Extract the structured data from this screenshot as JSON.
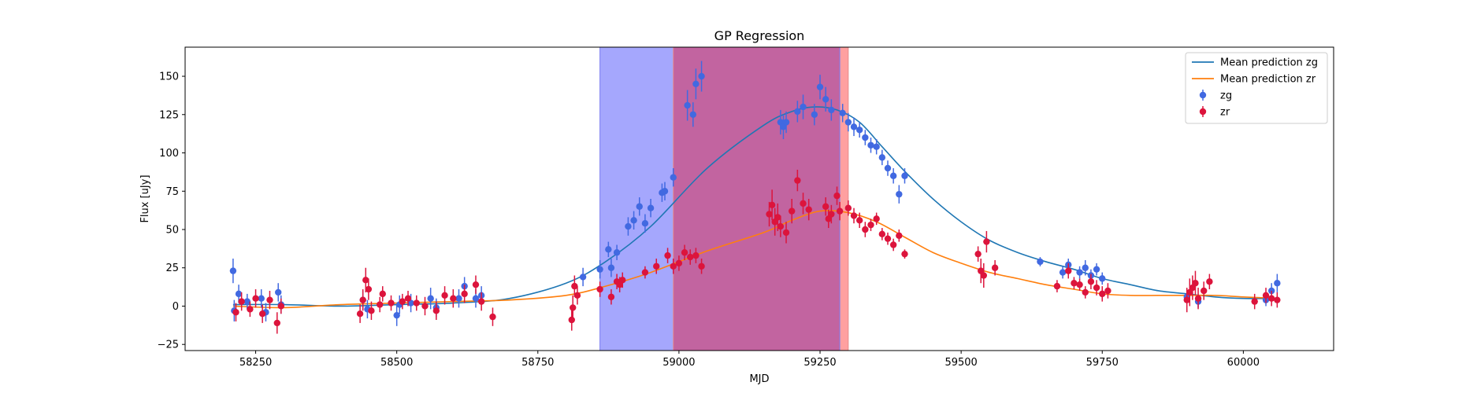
{
  "chart_data": {
    "type": "scatter",
    "title": "GP Regression",
    "xlabel": "MJD",
    "ylabel": "Flux [uJy]",
    "xlim": [
      58125,
      60160
    ],
    "ylim": [
      -29,
      169
    ],
    "xticks": [
      58250,
      58500,
      58750,
      59000,
      59250,
      59500,
      59750,
      60000
    ],
    "yticks": [
      -25,
      0,
      25,
      50,
      75,
      100,
      125,
      150
    ],
    "grid": false,
    "legend_position": "top-right",
    "legend": [
      "Mean prediction zg",
      "Mean prediction zr",
      "zg",
      "zr"
    ],
    "colors": {
      "zg_line": "#1f77b4",
      "zr_line": "#ff7f0e",
      "zg_points": "#4169e1",
      "zr_points": "#dc143c",
      "blue_band": "#a5a7fd",
      "red_band": "#ffa0a0",
      "overlap_band": "#c264a0"
    },
    "bands": [
      {
        "color": "blue",
        "x": [
          58860,
          59285
        ]
      },
      {
        "color": "red",
        "x": [
          58990,
          59300
        ]
      }
    ],
    "series": [
      {
        "name": "Mean prediction zg",
        "kind": "line",
        "x": [
          58210,
          58300,
          58400,
          58500,
          58600,
          58700,
          58800,
          58870,
          58950,
          59050,
          59150,
          59200,
          59240,
          59280,
          59320,
          59360,
          59400,
          59450,
          59500,
          59550,
          59600,
          59650,
          59700,
          59750,
          59800,
          59850,
          59900,
          59950,
          60000,
          60060
        ],
        "y": [
          1,
          1,
          0,
          1,
          2,
          5,
          15,
          29,
          52,
          90,
          118,
          127,
          130,
          128,
          120,
          104,
          88,
          70,
          55,
          43,
          35,
          29,
          24,
          18,
          14,
          10,
          8,
          6,
          5,
          5
        ]
      },
      {
        "name": "Mean prediction zr",
        "kind": "line",
        "x": [
          58210,
          58300,
          58400,
          58500,
          58600,
          58700,
          58800,
          58870,
          58950,
          59050,
          59150,
          59200,
          59250,
          59300,
          59350,
          59400,
          59450,
          59500,
          59550,
          59600,
          59650,
          59700,
          59750,
          59800,
          59850,
          59900,
          59950,
          60000,
          60060
        ],
        "y": [
          0,
          -1,
          1,
          2,
          3,
          4,
          7,
          13,
          22,
          36,
          48,
          56,
          62,
          61,
          55,
          45,
          35,
          28,
          22,
          18,
          14,
          11,
          8,
          7,
          7,
          7,
          7,
          6,
          5
        ]
      },
      {
        "name": "zg",
        "kind": "errorbar",
        "x": [
          58210,
          58212,
          58220,
          58235,
          58260,
          58268,
          58290,
          58295,
          58440,
          58448,
          58500,
          58505,
          58525,
          58560,
          58570,
          58610,
          58620,
          58640,
          58650,
          58830,
          58860,
          58875,
          58880,
          58890,
          58910,
          58920,
          58930,
          58940,
          58950,
          58970,
          58975,
          58990,
          59015,
          59025,
          59030,
          59040,
          59180,
          59185,
          59190,
          59210,
          59220,
          59240,
          59250,
          59260,
          59270,
          59290,
          59300,
          59310,
          59320,
          59330,
          59340,
          59350,
          59360,
          59370,
          59380,
          59390,
          59400,
          59640,
          59680,
          59690,
          59710,
          59720,
          59730,
          59740,
          59750,
          59900,
          59920,
          60040,
          60050,
          60060
        ],
        "y": [
          23,
          -3,
          8,
          3,
          5,
          -4,
          9,
          1,
          4,
          -2,
          -6,
          1,
          2,
          5,
          -1,
          5,
          13,
          5,
          7,
          19,
          24,
          37,
          25,
          35,
          52,
          56,
          65,
          54,
          64,
          74,
          75,
          84,
          131,
          125,
          145,
          150,
          120,
          117,
          120,
          127,
          130,
          125,
          143,
          135,
          128,
          126,
          120,
          117,
          115,
          110,
          105,
          104,
          97,
          90,
          85,
          73,
          85,
          29,
          22,
          27,
          22,
          25,
          20,
          24,
          18,
          6,
          3,
          4,
          10,
          15
        ],
        "err": [
          8,
          7,
          6,
          5,
          6,
          6,
          6,
          6,
          6,
          6,
          7,
          6,
          6,
          7,
          6,
          6,
          6,
          6,
          6,
          6,
          6,
          5,
          6,
          5,
          6,
          6,
          6,
          6,
          6,
          6,
          6,
          6,
          10,
          8,
          10,
          10,
          8,
          8,
          7,
          7,
          8,
          7,
          8,
          8,
          7,
          6,
          6,
          6,
          5,
          5,
          5,
          5,
          5,
          5,
          5,
          6,
          5,
          3,
          4,
          4,
          4,
          5,
          4,
          4,
          4,
          4,
          4,
          4,
          5,
          6
        ]
      },
      {
        "name": "zr",
        "kind": "errorbar",
        "x": [
          58215,
          58225,
          58240,
          58250,
          58262,
          58275,
          58288,
          58295,
          58435,
          58440,
          58445,
          58450,
          58455,
          58470,
          58475,
          58490,
          58510,
          58520,
          58535,
          58550,
          58570,
          58585,
          58600,
          58620,
          58640,
          58650,
          58670,
          58810,
          58812,
          58815,
          58820,
          58860,
          58880,
          58890,
          58895,
          58900,
          58940,
          58960,
          58980,
          58990,
          59000,
          59010,
          59020,
          59030,
          59040,
          59160,
          59165,
          59170,
          59175,
          59180,
          59190,
          59200,
          59210,
          59220,
          59230,
          59260,
          59265,
          59270,
          59280,
          59285,
          59300,
          59310,
          59320,
          59330,
          59340,
          59350,
          59360,
          59370,
          59380,
          59390,
          59400,
          59530,
          59535,
          59540,
          59545,
          59560,
          59670,
          59690,
          59700,
          59710,
          59720,
          59730,
          59740,
          59750,
          59760,
          59900,
          59905,
          59910,
          59915,
          59920,
          59930,
          59940,
          60020,
          60040,
          60050,
          60060
        ],
        "y": [
          -4,
          3,
          -2,
          5,
          -5,
          4,
          -11,
          0,
          -5,
          4,
          17,
          11,
          -3,
          1,
          8,
          2,
          3,
          5,
          2,
          0,
          -3,
          7,
          5,
          8,
          14,
          3,
          -7,
          -9,
          -1,
          13,
          7,
          11,
          6,
          16,
          14,
          17,
          22,
          26,
          33,
          26,
          28,
          35,
          32,
          33,
          26,
          60,
          66,
          55,
          58,
          52,
          48,
          62,
          82,
          67,
          63,
          65,
          57,
          60,
          72,
          62,
          64,
          59,
          56,
          50,
          53,
          57,
          47,
          44,
          40,
          46,
          34,
          34,
          23,
          20,
          42,
          25,
          13,
          23,
          15,
          14,
          9,
          16,
          12,
          8,
          10,
          4,
          9,
          12,
          15,
          5,
          10,
          16,
          3,
          7,
          5,
          4
        ],
        "err": [
          6,
          6,
          5,
          6,
          6,
          6,
          7,
          5,
          6,
          7,
          8,
          7,
          6,
          5,
          5,
          5,
          5,
          5,
          5,
          6,
          6,
          6,
          6,
          6,
          6,
          6,
          6,
          7,
          8,
          7,
          6,
          5,
          5,
          5,
          5,
          5,
          4,
          5,
          5,
          5,
          5,
          5,
          5,
          5,
          5,
          8,
          10,
          9,
          9,
          7,
          7,
          8,
          7,
          7,
          7,
          6,
          6,
          6,
          6,
          6,
          5,
          5,
          5,
          5,
          4,
          4,
          4,
          4,
          4,
          4,
          3,
          5,
          8,
          8,
          7,
          5,
          4,
          5,
          4,
          4,
          4,
          5,
          5,
          5,
          5,
          8,
          9,
          8,
          8,
          7,
          6,
          5,
          5,
          5,
          5,
          5
        ]
      }
    ]
  }
}
